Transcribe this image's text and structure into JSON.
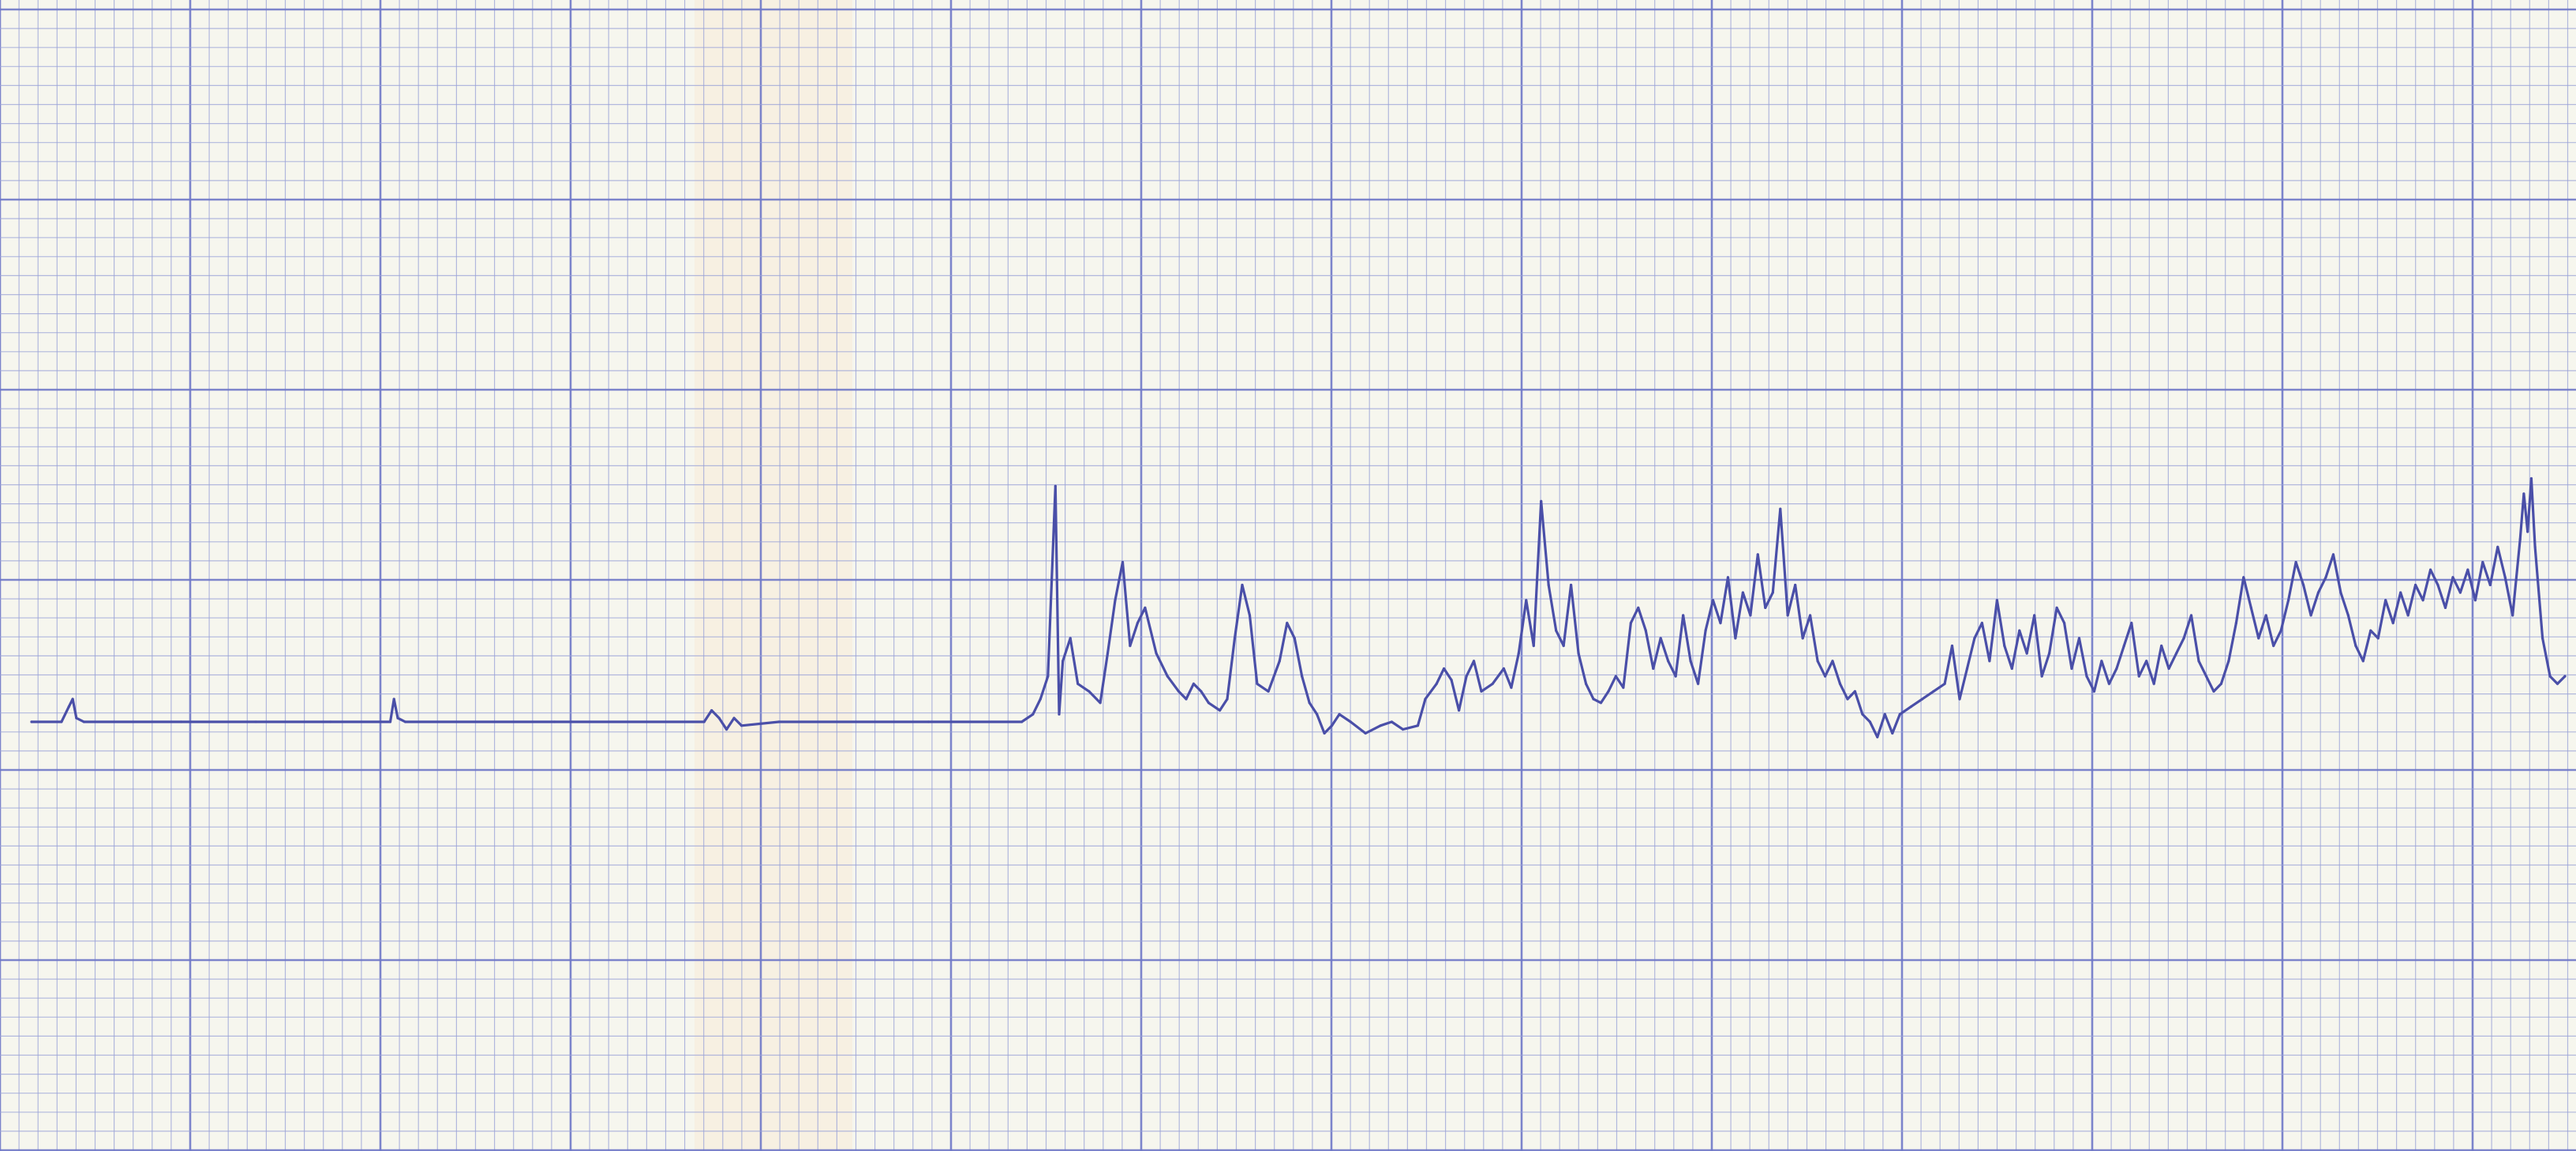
{
  "chart_data": {
    "type": "line",
    "title": "",
    "xlabel": "",
    "ylabel": "",
    "xlim": [
      0,
      678
    ],
    "ylim": [
      -20,
      30
    ],
    "grid": true,
    "series": [
      {
        "values": [
          [
            0,
            0
          ],
          [
            8,
            0
          ],
          [
            10,
            0.4
          ],
          [
            11,
            0.6
          ],
          [
            12,
            0.1
          ],
          [
            14,
            0
          ],
          [
            40,
            0
          ],
          [
            60,
            0
          ],
          [
            80,
            0
          ],
          [
            96,
            0
          ],
          [
            97,
            0.6
          ],
          [
            98,
            0.1
          ],
          [
            100,
            0
          ],
          [
            140,
            0
          ],
          [
            180,
            0
          ],
          [
            182,
            0.3
          ],
          [
            184,
            0.1
          ],
          [
            186,
            -0.2
          ],
          [
            188,
            0.1
          ],
          [
            190,
            -0.1
          ],
          [
            200,
            0
          ],
          [
            240,
            0
          ],
          [
            265,
            0
          ],
          [
            268,
            0.2
          ],
          [
            270,
            0.6
          ],
          [
            272,
            1.2
          ],
          [
            274,
            6.2
          ],
          [
            275,
            0.2
          ],
          [
            276,
            1.6
          ],
          [
            278,
            2.2
          ],
          [
            280,
            1.0
          ],
          [
            283,
            0.8
          ],
          [
            286,
            0.5
          ],
          [
            288,
            1.8
          ],
          [
            290,
            3.2
          ],
          [
            292,
            4.2
          ],
          [
            294,
            2.0
          ],
          [
            296,
            2.6
          ],
          [
            298,
            3.0
          ],
          [
            301,
            1.8
          ],
          [
            304,
            1.2
          ],
          [
            307,
            0.8
          ],
          [
            309,
            0.6
          ],
          [
            311,
            1.0
          ],
          [
            313,
            0.8
          ],
          [
            315,
            0.5
          ],
          [
            318,
            0.3
          ],
          [
            320,
            0.6
          ],
          [
            322,
            2.2
          ],
          [
            324,
            3.6
          ],
          [
            326,
            2.8
          ],
          [
            328,
            1.0
          ],
          [
            331,
            0.8
          ],
          [
            334,
            1.6
          ],
          [
            336,
            2.6
          ],
          [
            338,
            2.2
          ],
          [
            340,
            1.2
          ],
          [
            342,
            0.5
          ],
          [
            344,
            0.2
          ],
          [
            346,
            -0.3
          ],
          [
            348,
            -0.1
          ],
          [
            350,
            0.2
          ],
          [
            353,
            0
          ],
          [
            357,
            -0.3
          ],
          [
            361,
            -0.1
          ],
          [
            364,
            0
          ],
          [
            367,
            -0.2
          ],
          [
            371,
            -0.1
          ],
          [
            373,
            0.6
          ],
          [
            376,
            1.0
          ],
          [
            378,
            1.4
          ],
          [
            380,
            1.1
          ],
          [
            382,
            0.3
          ],
          [
            384,
            1.2
          ],
          [
            386,
            1.6
          ],
          [
            388,
            0.8
          ],
          [
            391,
            1.0
          ],
          [
            394,
            1.4
          ],
          [
            396,
            0.9
          ],
          [
            398,
            1.8
          ],
          [
            400,
            3.2
          ],
          [
            402,
            2.0
          ],
          [
            404,
            5.8
          ],
          [
            406,
            3.6
          ],
          [
            408,
            2.4
          ],
          [
            410,
            2.0
          ],
          [
            412,
            3.6
          ],
          [
            414,
            1.8
          ],
          [
            416,
            1.0
          ],
          [
            418,
            0.6
          ],
          [
            420,
            0.5
          ],
          [
            422,
            0.8
          ],
          [
            424,
            1.2
          ],
          [
            426,
            0.9
          ],
          [
            428,
            2.6
          ],
          [
            430,
            3.0
          ],
          [
            432,
            2.4
          ],
          [
            434,
            1.4
          ],
          [
            436,
            2.2
          ],
          [
            438,
            1.6
          ],
          [
            440,
            1.2
          ],
          [
            442,
            2.8
          ],
          [
            444,
            1.6
          ],
          [
            446,
            1.0
          ],
          [
            448,
            2.4
          ],
          [
            450,
            3.2
          ],
          [
            452,
            2.6
          ],
          [
            454,
            3.8
          ],
          [
            456,
            2.2
          ],
          [
            458,
            3.4
          ],
          [
            460,
            2.8
          ],
          [
            462,
            4.4
          ],
          [
            464,
            3.0
          ],
          [
            466,
            3.4
          ],
          [
            468,
            5.6
          ],
          [
            470,
            2.8
          ],
          [
            472,
            3.6
          ],
          [
            474,
            2.2
          ],
          [
            476,
            2.8
          ],
          [
            478,
            1.6
          ],
          [
            480,
            1.2
          ],
          [
            482,
            1.6
          ],
          [
            484,
            1.0
          ],
          [
            486,
            0.6
          ],
          [
            488,
            0.8
          ],
          [
            490,
            0.2
          ],
          [
            492,
            0
          ],
          [
            494,
            -0.4
          ],
          [
            496,
            0.2
          ],
          [
            498,
            -0.3
          ],
          [
            500,
            0.2
          ],
          [
            503,
            0.4
          ],
          [
            506,
            0.6
          ],
          [
            509,
            0.8
          ],
          [
            512,
            1.0
          ],
          [
            514,
            2.0
          ],
          [
            516,
            0.6
          ],
          [
            518,
            1.4
          ],
          [
            520,
            2.2
          ],
          [
            522,
            2.6
          ],
          [
            524,
            1.6
          ],
          [
            526,
            3.2
          ],
          [
            528,
            2.0
          ],
          [
            530,
            1.4
          ],
          [
            532,
            2.4
          ],
          [
            534,
            1.8
          ],
          [
            536,
            2.8
          ],
          [
            538,
            1.2
          ],
          [
            540,
            1.8
          ],
          [
            542,
            3.0
          ],
          [
            544,
            2.6
          ],
          [
            546,
            1.4
          ],
          [
            548,
            2.2
          ],
          [
            550,
            1.2
          ],
          [
            552,
            0.8
          ],
          [
            554,
            1.6
          ],
          [
            556,
            1.0
          ],
          [
            558,
            1.4
          ],
          [
            560,
            2.0
          ],
          [
            562,
            2.6
          ],
          [
            564,
            1.2
          ],
          [
            566,
            1.6
          ],
          [
            568,
            1.0
          ],
          [
            570,
            2.0
          ],
          [
            572,
            1.4
          ],
          [
            574,
            1.8
          ],
          [
            576,
            2.2
          ],
          [
            578,
            2.8
          ],
          [
            580,
            1.6
          ],
          [
            582,
            1.2
          ],
          [
            584,
            0.8
          ],
          [
            586,
            1.0
          ],
          [
            588,
            1.6
          ],
          [
            590,
            2.6
          ],
          [
            592,
            3.8
          ],
          [
            594,
            3.0
          ],
          [
            596,
            2.2
          ],
          [
            598,
            2.8
          ],
          [
            600,
            2.0
          ],
          [
            602,
            2.4
          ],
          [
            604,
            3.2
          ],
          [
            606,
            4.2
          ],
          [
            608,
            3.6
          ],
          [
            610,
            2.8
          ],
          [
            612,
            3.4
          ],
          [
            614,
            3.8
          ],
          [
            616,
            4.4
          ],
          [
            618,
            3.4
          ],
          [
            620,
            2.8
          ],
          [
            622,
            2.0
          ],
          [
            624,
            1.6
          ],
          [
            626,
            2.4
          ],
          [
            628,
            2.2
          ],
          [
            630,
            3.2
          ],
          [
            632,
            2.6
          ],
          [
            634,
            3.4
          ],
          [
            636,
            2.8
          ],
          [
            638,
            3.6
          ],
          [
            640,
            3.2
          ],
          [
            642,
            4.0
          ],
          [
            644,
            3.6
          ],
          [
            646,
            3.0
          ],
          [
            648,
            3.8
          ],
          [
            650,
            3.4
          ],
          [
            652,
            4.0
          ],
          [
            654,
            3.2
          ],
          [
            656,
            4.2
          ],
          [
            658,
            3.6
          ],
          [
            660,
            4.6
          ],
          [
            662,
            3.8
          ],
          [
            664,
            2.8
          ],
          [
            666,
            4.8
          ],
          [
            667,
            6.0
          ],
          [
            668,
            5.0
          ],
          [
            669,
            6.4
          ],
          [
            670,
            4.6
          ],
          [
            672,
            2.2
          ],
          [
            674,
            1.2
          ],
          [
            676,
            1.0
          ],
          [
            678,
            1.2
          ]
        ]
      }
    ]
  }
}
